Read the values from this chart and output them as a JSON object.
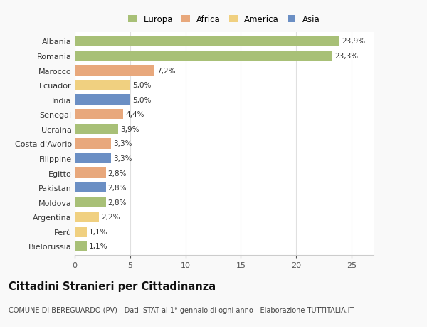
{
  "categories": [
    "Albania",
    "Romania",
    "Marocco",
    "Ecuador",
    "India",
    "Senegal",
    "Ucraina",
    "Costa d'Avorio",
    "Filippine",
    "Egitto",
    "Pakistan",
    "Moldova",
    "Argentina",
    "Perù",
    "Bielorussia"
  ],
  "values": [
    23.9,
    23.3,
    7.2,
    5.0,
    5.0,
    4.4,
    3.9,
    3.3,
    3.3,
    2.8,
    2.8,
    2.8,
    2.2,
    1.1,
    1.1
  ],
  "labels": [
    "23,9%",
    "23,3%",
    "7,2%",
    "5,0%",
    "5,0%",
    "4,4%",
    "3,9%",
    "3,3%",
    "3,3%",
    "2,8%",
    "2,8%",
    "2,8%",
    "2,2%",
    "1,1%",
    "1,1%"
  ],
  "colors": [
    "#a8c077",
    "#a8c077",
    "#e8a87c",
    "#f0d080",
    "#6b8fc4",
    "#e8a87c",
    "#a8c077",
    "#e8a87c",
    "#6b8fc4",
    "#e8a87c",
    "#6b8fc4",
    "#a8c077",
    "#f0d080",
    "#f0d080",
    "#a8c077"
  ],
  "legend": [
    {
      "label": "Europa",
      "color": "#a8c077"
    },
    {
      "label": "Africa",
      "color": "#e8a87c"
    },
    {
      "label": "America",
      "color": "#f0d080"
    },
    {
      "label": "Asia",
      "color": "#6b8fc4"
    }
  ],
  "xlim": [
    0,
    27
  ],
  "xticks": [
    0,
    5,
    10,
    15,
    20,
    25
  ],
  "title": "Cittadini Stranieri per Cittadinanza",
  "subtitle": "COMUNE DI BEREGUARDO (PV) - Dati ISTAT al 1° gennaio di ogni anno - Elaborazione TUTTITALIA.IT",
  "plot_bg": "#ffffff",
  "fig_bg": "#f9f9f9",
  "grid_color": "#e0e0e0",
  "bar_height": 0.7,
  "label_fontsize": 7.5,
  "ytick_fontsize": 8.0,
  "xtick_fontsize": 8.0,
  "title_fontsize": 10.5,
  "subtitle_fontsize": 7.0
}
